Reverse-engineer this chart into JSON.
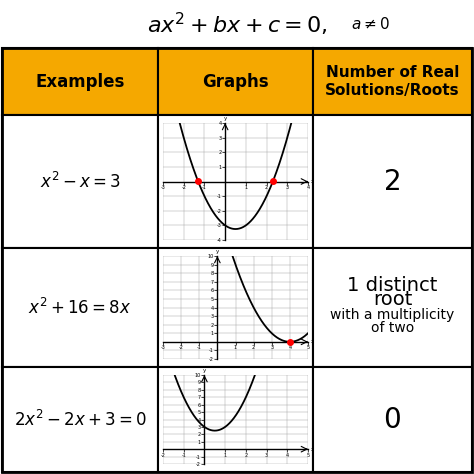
{
  "title_parts": [
    "ax",
    "2",
    " + bx + c = 0,  a ≠ 0"
  ],
  "header_bg": "#F5A800",
  "col_headers": [
    "Examples",
    "Graphs",
    "Number of Real\nSolutions/Roots"
  ],
  "examples": [
    "$x^2 - x = 3$",
    "$x^2 + 16 = 8x$",
    "$2x^2 - 2x + 3 = 0$"
  ],
  "solutions_row0": "2",
  "solutions_row2": "0",
  "solutions_row1_lines": [
    "1 distinct",
    "root",
    "with a multiplicity",
    "of two"
  ],
  "parabolas": [
    {
      "a": 1,
      "b": -1,
      "c": -3,
      "xlim": [
        -3,
        4
      ],
      "ylim": [
        -4,
        4
      ],
      "xticks": [
        -3,
        -2,
        -1,
        1,
        2,
        3,
        4
      ],
      "yticks": [
        -4,
        -3,
        -2,
        -1,
        1,
        2,
        3,
        4
      ],
      "roots": [
        -1.303,
        2.303
      ]
    },
    {
      "a": 1,
      "b": -8,
      "c": 16,
      "xlim": [
        -3,
        5
      ],
      "ylim": [
        -2,
        10
      ],
      "xticks": [
        -3,
        -2,
        -1,
        1,
        2,
        3,
        4,
        5
      ],
      "yticks": [
        -2,
        -1,
        1,
        2,
        3,
        4,
        5,
        6,
        7,
        8,
        9,
        10
      ],
      "roots": [
        4
      ]
    },
    {
      "a": 2,
      "b": -2,
      "c": 3,
      "xlim": [
        -2,
        5
      ],
      "ylim": [
        -2,
        10
      ],
      "xticks": [
        -2,
        -1,
        1,
        2,
        3,
        4,
        5
      ],
      "yticks": [
        -2,
        -1,
        1,
        2,
        3,
        4,
        5,
        6,
        7,
        8,
        9,
        10
      ],
      "roots": []
    }
  ],
  "root_color": "#FF0000",
  "fig_w": 4.74,
  "fig_h": 4.74,
  "dpi": 100
}
